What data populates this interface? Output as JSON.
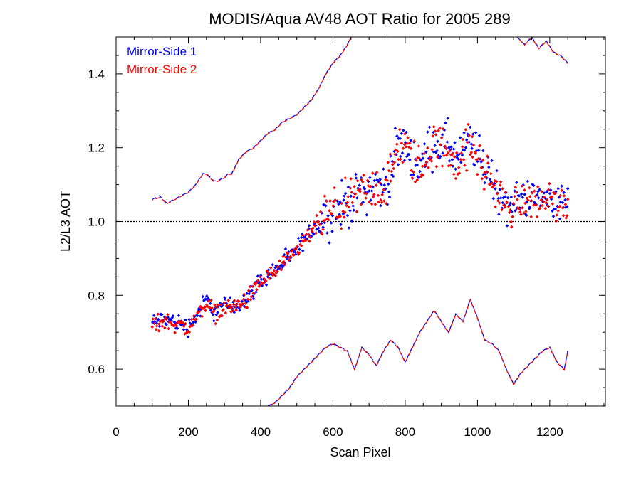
{
  "chart_data": {
    "type": "scatter",
    "title": "MODIS/Aqua AV48 AOT Ratio for 2005 289",
    "xlabel": "Scan Pixel",
    "ylabel": "L2/L3 AOT",
    "xlim": [
      0,
      1354
    ],
    "ylim": [
      0.5,
      1.5
    ],
    "xticks": [
      0,
      200,
      400,
      600,
      800,
      1000,
      1200
    ],
    "xtick_labels": [
      "0",
      "200",
      "400",
      "600",
      "800",
      "1000",
      "1200"
    ],
    "yticks": [
      0.6,
      0.8,
      1.0,
      1.2,
      1.4
    ],
    "ytick_labels": [
      "0.6",
      "0.8",
      "1.0",
      "1.2",
      "1.4"
    ],
    "reference_line": 1.0,
    "legend_position": "top-left",
    "colors": {
      "side1": "#0000ff",
      "side2": "#ff0000",
      "reference": "#000000"
    },
    "series": [
      {
        "name": "Mirror-Side 1",
        "color": "#0000ff",
        "mean": {
          "x": [
            100,
            130,
            160,
            200,
            230,
            250,
            270,
            300,
            330,
            360,
            400,
            440,
            480,
            520,
            560,
            600,
            640,
            680,
            720,
            740,
            760,
            780,
            800,
            820,
            840,
            860,
            880,
            900,
            920,
            940,
            960,
            980,
            1000,
            1020,
            1040,
            1060,
            1080,
            1100,
            1120,
            1140,
            1160,
            1180,
            1200,
            1220,
            1250
          ],
          "y": [
            0.725,
            0.735,
            0.73,
            0.715,
            0.755,
            0.79,
            0.755,
            0.77,
            0.775,
            0.79,
            0.84,
            0.87,
            0.9,
            0.95,
            1.0,
            1.03,
            1.05,
            1.08,
            1.1,
            1.09,
            1.13,
            1.2,
            1.21,
            1.17,
            1.15,
            1.18,
            1.22,
            1.2,
            1.21,
            1.17,
            1.18,
            1.22,
            1.18,
            1.15,
            1.12,
            1.08,
            1.04,
            1.05,
            1.06,
            1.07,
            1.06,
            1.06,
            1.07,
            1.05,
            1.05
          ]
        },
        "upper": {
          "x": [
            100,
            120,
            130,
            140,
            160,
            180,
            200,
            220,
            240,
            250,
            260,
            270,
            280,
            300,
            310,
            320,
            330,
            340,
            360,
            380,
            400,
            420,
            440,
            460,
            480,
            500,
            520,
            540,
            560,
            580,
            600,
            620,
            640,
            650
          ],
          "y": [
            1.06,
            1.07,
            1.06,
            1.05,
            1.06,
            1.07,
            1.08,
            1.1,
            1.13,
            1.13,
            1.12,
            1.11,
            1.11,
            1.12,
            1.13,
            1.13,
            1.15,
            1.17,
            1.19,
            1.2,
            1.22,
            1.24,
            1.25,
            1.27,
            1.28,
            1.29,
            1.31,
            1.33,
            1.36,
            1.4,
            1.43,
            1.45,
            1.48,
            1.5
          ]
        },
        "upper_right": {
          "x": [
            1110,
            1130,
            1150,
            1170,
            1190,
            1210,
            1230,
            1250
          ],
          "y": [
            1.5,
            1.48,
            1.5,
            1.47,
            1.49,
            1.46,
            1.45,
            1.43
          ]
        },
        "lower": {
          "x": [
            420,
            440,
            460,
            480,
            500,
            520,
            540,
            560,
            580,
            600,
            620,
            640,
            660,
            680,
            700,
            720,
            740,
            760,
            780,
            800,
            820,
            840,
            860,
            880,
            900,
            920,
            940,
            960,
            980,
            1000,
            1020,
            1040,
            1060,
            1080,
            1100,
            1120,
            1140,
            1160,
            1180,
            1200,
            1220,
            1240,
            1250
          ],
          "y": [
            0.5,
            0.51,
            0.53,
            0.55,
            0.58,
            0.6,
            0.62,
            0.64,
            0.66,
            0.67,
            0.66,
            0.65,
            0.6,
            0.66,
            0.64,
            0.61,
            0.65,
            0.68,
            0.66,
            0.62,
            0.66,
            0.7,
            0.73,
            0.76,
            0.73,
            0.7,
            0.75,
            0.73,
            0.79,
            0.74,
            0.68,
            0.67,
            0.65,
            0.6,
            0.56,
            0.59,
            0.61,
            0.63,
            0.65,
            0.66,
            0.62,
            0.6,
            0.65
          ]
        }
      },
      {
        "name": "Mirror-Side 2",
        "color": "#ff0000",
        "mean": {
          "x": [
            100,
            130,
            160,
            200,
            230,
            250,
            270,
            300,
            330,
            360,
            400,
            440,
            480,
            520,
            560,
            600,
            640,
            680,
            720,
            740,
            760,
            780,
            800,
            820,
            840,
            860,
            880,
            900,
            920,
            940,
            960,
            980,
            1000,
            1020,
            1040,
            1060,
            1080,
            1100,
            1120,
            1140,
            1160,
            1180,
            1200,
            1220,
            1250
          ],
          "y": [
            0.72,
            0.73,
            0.725,
            0.71,
            0.75,
            0.785,
            0.75,
            0.765,
            0.77,
            0.785,
            0.835,
            0.865,
            0.895,
            0.945,
            0.995,
            1.025,
            1.045,
            1.075,
            1.095,
            1.085,
            1.125,
            1.195,
            1.205,
            1.165,
            1.145,
            1.175,
            1.215,
            1.195,
            1.2,
            1.165,
            1.175,
            1.21,
            1.17,
            1.14,
            1.11,
            1.07,
            1.04,
            1.04,
            1.05,
            1.06,
            1.055,
            1.055,
            1.065,
            1.045,
            1.04
          ]
        },
        "upper": {
          "x": [
            100,
            120,
            130,
            140,
            160,
            180,
            200,
            220,
            240,
            250,
            260,
            270,
            280,
            300,
            310,
            320,
            330,
            340,
            360,
            380,
            400,
            420,
            440,
            460,
            480,
            500,
            520,
            540,
            560,
            580,
            600,
            620,
            640,
            650
          ],
          "y": [
            1.058,
            1.065,
            1.058,
            1.048,
            1.058,
            1.068,
            1.078,
            1.098,
            1.128,
            1.128,
            1.118,
            1.108,
            1.108,
            1.118,
            1.128,
            1.128,
            1.148,
            1.168,
            1.188,
            1.198,
            1.218,
            1.238,
            1.248,
            1.268,
            1.278,
            1.288,
            1.308,
            1.328,
            1.358,
            1.398,
            1.428,
            1.448,
            1.478,
            1.5
          ]
        },
        "upper_right": {
          "x": [
            1110,
            1130,
            1150,
            1170,
            1190,
            1210,
            1230,
            1250
          ],
          "y": [
            1.5,
            1.478,
            1.498,
            1.468,
            1.488,
            1.458,
            1.448,
            1.428
          ]
        },
        "lower": {
          "x": [
            420,
            440,
            460,
            480,
            500,
            520,
            540,
            560,
            580,
            600,
            620,
            640,
            660,
            680,
            700,
            720,
            740,
            760,
            780,
            800,
            820,
            840,
            860,
            880,
            900,
            920,
            940,
            960,
            980,
            1000,
            1020,
            1040,
            1060,
            1080,
            1100,
            1120,
            1140,
            1160,
            1180,
            1200,
            1220,
            1240,
            1250
          ],
          "y": [
            0.5,
            0.508,
            0.528,
            0.548,
            0.578,
            0.598,
            0.618,
            0.638,
            0.658,
            0.668,
            0.658,
            0.648,
            0.598,
            0.658,
            0.638,
            0.608,
            0.648,
            0.678,
            0.658,
            0.618,
            0.658,
            0.698,
            0.728,
            0.758,
            0.728,
            0.698,
            0.748,
            0.728,
            0.788,
            0.738,
            0.678,
            0.668,
            0.648,
            0.598,
            0.558,
            0.588,
            0.608,
            0.628,
            0.648,
            0.658,
            0.618,
            0.598,
            0.648
          ]
        }
      }
    ]
  }
}
